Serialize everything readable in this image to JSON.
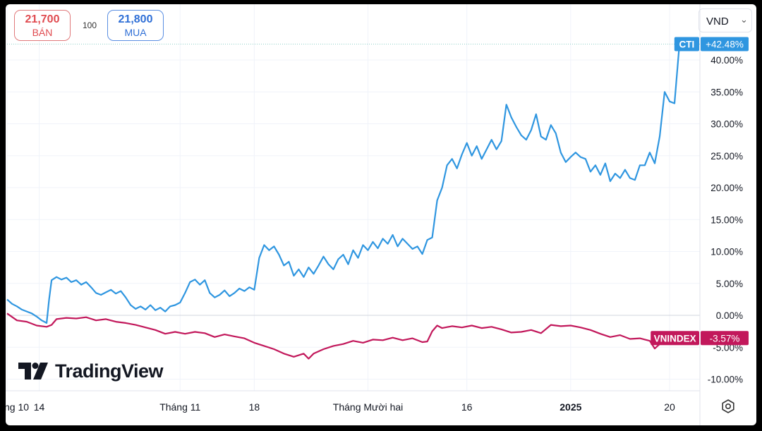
{
  "header": {
    "sell_price": "21,700",
    "sell_label": "BÁN",
    "spread": "100",
    "buy_price": "21,800",
    "buy_label": "MUA",
    "currency": "VND"
  },
  "branding": {
    "logo_text": "TradingView"
  },
  "colors": {
    "cti": "#2f96e0",
    "vnindex": "#c2185b",
    "grid": "#f0f3fa",
    "axis_text": "#131722"
  },
  "chart_data": {
    "type": "line",
    "y_unit": "%",
    "ylim": [
      -12,
      46
    ],
    "y_ticks": [
      "40.00%",
      "35.00%",
      "30.00%",
      "25.00%",
      "20.00%",
      "15.00%",
      "10.00%",
      "5.00%",
      "0.00%",
      "-5.00%",
      "-10.00%"
    ],
    "y_tick_values": [
      40,
      35,
      30,
      25,
      20,
      15,
      10,
      5,
      0,
      -5,
      -10
    ],
    "x_ticks": [
      "ng 10",
      "14",
      "Tháng 11",
      "18",
      "Tháng Mười hai",
      "16",
      "2025",
      "20"
    ],
    "x_tick_days": [
      0,
      6.5,
      35,
      50,
      73,
      93,
      114,
      134
    ],
    "x_range": [
      0,
      137
    ],
    "grid": true,
    "series": [
      {
        "name": "CTI",
        "last_label": "+42.48%",
        "points": [
          [
            0,
            2.5
          ],
          [
            1,
            1.8
          ],
          [
            2,
            1.4
          ],
          [
            3,
            0.9
          ],
          [
            4,
            0.6
          ],
          [
            5,
            0.3
          ],
          [
            6,
            -0.2
          ],
          [
            7,
            -0.8
          ],
          [
            8,
            -1.2
          ],
          [
            8.5,
            2.5
          ],
          [
            9,
            5.5
          ],
          [
            10,
            6.0
          ],
          [
            11,
            5.6
          ],
          [
            12,
            5.9
          ],
          [
            13,
            5.2
          ],
          [
            14,
            5.5
          ],
          [
            15,
            4.8
          ],
          [
            16,
            5.2
          ],
          [
            17,
            4.4
          ],
          [
            18,
            3.5
          ],
          [
            19,
            3.2
          ],
          [
            20,
            3.6
          ],
          [
            21,
            4.0
          ],
          [
            22,
            3.4
          ],
          [
            23,
            3.8
          ],
          [
            24,
            2.8
          ],
          [
            25,
            1.6
          ],
          [
            26,
            1.0
          ],
          [
            27,
            1.4
          ],
          [
            28,
            0.9
          ],
          [
            29,
            1.6
          ],
          [
            30,
            0.8
          ],
          [
            31,
            1.2
          ],
          [
            32,
            0.6
          ],
          [
            33,
            1.4
          ],
          [
            34,
            1.6
          ],
          [
            35,
            2.0
          ],
          [
            36,
            3.5
          ],
          [
            37,
            5.2
          ],
          [
            38,
            5.6
          ],
          [
            39,
            4.8
          ],
          [
            40,
            5.5
          ],
          [
            41,
            3.5
          ],
          [
            42,
            2.8
          ],
          [
            43,
            3.2
          ],
          [
            44,
            3.9
          ],
          [
            45,
            3.0
          ],
          [
            46,
            3.5
          ],
          [
            47,
            4.2
          ],
          [
            48,
            3.8
          ],
          [
            49,
            4.4
          ],
          [
            50,
            4.0
          ],
          [
            51,
            9.0
          ],
          [
            52,
            11.0
          ],
          [
            53,
            10.2
          ],
          [
            54,
            10.8
          ],
          [
            55,
            9.5
          ],
          [
            56,
            7.8
          ],
          [
            57,
            8.4
          ],
          [
            58,
            6.2
          ],
          [
            59,
            7.2
          ],
          [
            60,
            6.0
          ],
          [
            61,
            7.5
          ],
          [
            62,
            6.5
          ],
          [
            63,
            7.8
          ],
          [
            64,
            9.2
          ],
          [
            65,
            8.0
          ],
          [
            66,
            7.2
          ],
          [
            67,
            8.8
          ],
          [
            68,
            9.5
          ],
          [
            69,
            8.0
          ],
          [
            70,
            10.2
          ],
          [
            71,
            9.0
          ],
          [
            72,
            11.0
          ],
          [
            73,
            10.2
          ],
          [
            74,
            11.5
          ],
          [
            75,
            10.5
          ],
          [
            76,
            12.0
          ],
          [
            77,
            11.2
          ],
          [
            78,
            12.6
          ],
          [
            79,
            10.8
          ],
          [
            80,
            12.0
          ],
          [
            81,
            11.2
          ],
          [
            82,
            10.4
          ],
          [
            83,
            10.8
          ],
          [
            84,
            9.6
          ],
          [
            85,
            11.8
          ],
          [
            86,
            12.2
          ],
          [
            87,
            18.0
          ],
          [
            88,
            20.0
          ],
          [
            89,
            23.5
          ],
          [
            90,
            24.5
          ],
          [
            91,
            23.0
          ],
          [
            92,
            25.2
          ],
          [
            93,
            27.0
          ],
          [
            94,
            25.0
          ],
          [
            95,
            26.5
          ],
          [
            96,
            24.5
          ],
          [
            97,
            26.0
          ],
          [
            98,
            27.5
          ],
          [
            99,
            26.0
          ],
          [
            100,
            27.3
          ],
          [
            101,
            33.0
          ],
          [
            102,
            31.0
          ],
          [
            103,
            29.5
          ],
          [
            104,
            28.2
          ],
          [
            105,
            27.5
          ],
          [
            106,
            29.0
          ],
          [
            107,
            31.5
          ],
          [
            108,
            28.0
          ],
          [
            109,
            27.5
          ],
          [
            110,
            29.8
          ],
          [
            111,
            28.5
          ],
          [
            112,
            25.5
          ],
          [
            113,
            24.0
          ],
          [
            114,
            24.8
          ],
          [
            115,
            25.5
          ],
          [
            116,
            24.8
          ],
          [
            117,
            24.5
          ],
          [
            118,
            22.5
          ],
          [
            119,
            23.5
          ],
          [
            120,
            22.0
          ],
          [
            121,
            23.8
          ],
          [
            122,
            21.0
          ],
          [
            123,
            22.2
          ],
          [
            124,
            21.5
          ],
          [
            125,
            22.8
          ],
          [
            126,
            21.5
          ],
          [
            127,
            21.2
          ],
          [
            128,
            23.5
          ],
          [
            129,
            23.5
          ],
          [
            130,
            25.5
          ],
          [
            131,
            23.8
          ],
          [
            132,
            28.0
          ],
          [
            133,
            35.0
          ],
          [
            134,
            33.5
          ],
          [
            135,
            33.2
          ],
          [
            136,
            42.48
          ]
        ]
      },
      {
        "name": "VNINDEX",
        "last_label": "-3.57%",
        "points": [
          [
            0,
            0.3
          ],
          [
            2,
            -0.8
          ],
          [
            4,
            -1.0
          ],
          [
            6,
            -1.6
          ],
          [
            8,
            -1.8
          ],
          [
            9,
            -1.5
          ],
          [
            10,
            -0.6
          ],
          [
            12,
            -0.4
          ],
          [
            14,
            -0.5
          ],
          [
            16,
            -0.3
          ],
          [
            18,
            -0.8
          ],
          [
            20,
            -0.6
          ],
          [
            22,
            -1.0
          ],
          [
            24,
            -1.2
          ],
          [
            26,
            -1.5
          ],
          [
            28,
            -1.9
          ],
          [
            30,
            -2.3
          ],
          [
            32,
            -2.9
          ],
          [
            34,
            -2.6
          ],
          [
            36,
            -2.9
          ],
          [
            38,
            -2.6
          ],
          [
            40,
            -2.8
          ],
          [
            42,
            -3.4
          ],
          [
            44,
            -3.0
          ],
          [
            46,
            -3.3
          ],
          [
            48,
            -3.6
          ],
          [
            50,
            -4.3
          ],
          [
            52,
            -4.8
          ],
          [
            54,
            -5.3
          ],
          [
            56,
            -6.0
          ],
          [
            58,
            -6.5
          ],
          [
            60,
            -6.0
          ],
          [
            61,
            -6.8
          ],
          [
            62,
            -6.0
          ],
          [
            64,
            -5.3
          ],
          [
            66,
            -4.8
          ],
          [
            68,
            -4.5
          ],
          [
            70,
            -4.0
          ],
          [
            72,
            -4.3
          ],
          [
            74,
            -3.8
          ],
          [
            76,
            -3.9
          ],
          [
            78,
            -3.5
          ],
          [
            80,
            -3.9
          ],
          [
            82,
            -3.6
          ],
          [
            84,
            -4.2
          ],
          [
            85,
            -4.1
          ],
          [
            86,
            -2.5
          ],
          [
            87,
            -1.6
          ],
          [
            88,
            -2.0
          ],
          [
            90,
            -1.7
          ],
          [
            92,
            -1.9
          ],
          [
            94,
            -1.6
          ],
          [
            96,
            -2.0
          ],
          [
            98,
            -1.8
          ],
          [
            100,
            -2.2
          ],
          [
            102,
            -2.7
          ],
          [
            104,
            -2.6
          ],
          [
            106,
            -2.3
          ],
          [
            108,
            -2.8
          ],
          [
            110,
            -1.5
          ],
          [
            112,
            -1.7
          ],
          [
            114,
            -1.6
          ],
          [
            116,
            -1.9
          ],
          [
            118,
            -2.3
          ],
          [
            120,
            -2.9
          ],
          [
            122,
            -3.4
          ],
          [
            124,
            -3.1
          ],
          [
            126,
            -3.7
          ],
          [
            128,
            -3.6
          ],
          [
            130,
            -4.0
          ],
          [
            131,
            -5.2
          ],
          [
            132,
            -4.5
          ],
          [
            133,
            -4.0
          ],
          [
            134,
            -4.3
          ],
          [
            136,
            -3.57
          ]
        ]
      }
    ]
  }
}
